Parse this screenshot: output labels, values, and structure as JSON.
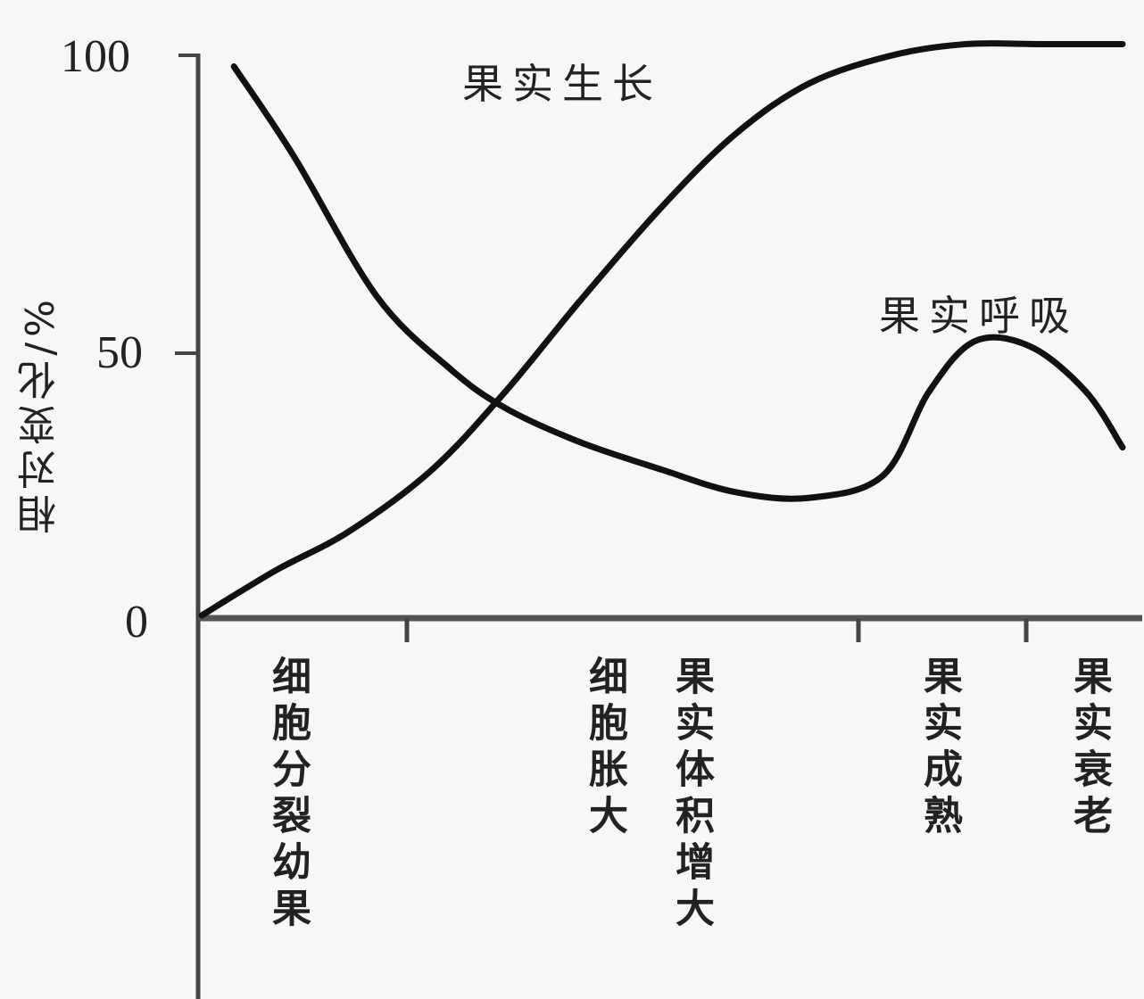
{
  "chart_data": {
    "type": "line",
    "title": "",
    "xlabel": "",
    "ylabel": "相对变化/%",
    "ylim": [
      0,
      105
    ],
    "yticks": [
      0,
      50,
      100
    ],
    "grid": false,
    "legend": "inline labels",
    "x_stages": [
      "细胞分裂幼果",
      "细胞胀大",
      "果实体积增大",
      "果实成熟",
      "果实衰老"
    ],
    "x_stage_boundaries_ticks": 3,
    "series": [
      {
        "name": "果实生长",
        "x": [
          0,
          0.08,
          0.16,
          0.25,
          0.33,
          0.41,
          0.5,
          0.58,
          0.66,
          0.75,
          0.83,
          0.91,
          1.0
        ],
        "values": [
          0,
          8,
          15,
          26,
          40,
          56,
          73,
          86,
          95,
          100,
          102,
          102,
          102
        ]
      },
      {
        "name": "果实呼吸",
        "x": [
          0.035,
          0.1,
          0.19,
          0.27,
          0.33,
          0.41,
          0.5,
          0.58,
          0.66,
          0.74,
          0.79,
          0.84,
          0.9,
          0.96,
          1.0
        ],
        "values": [
          98,
          82,
          57,
          44,
          37,
          31,
          26,
          22,
          21,
          25,
          40,
          49,
          48,
          40,
          30
        ]
      }
    ]
  },
  "axis": {
    "y_tick_labels": [
      "100",
      "50",
      "0"
    ],
    "y_title": "相对变化/%"
  },
  "labels": {
    "growth": "果实生长",
    "respiration": "果实呼吸"
  },
  "stages": [
    {
      "label": "细胞分裂幼果"
    },
    {
      "label": "细胞胀大"
    },
    {
      "label": "果实体积增大"
    },
    {
      "label": "果实成熟"
    },
    {
      "label": "果实衰老"
    }
  ]
}
